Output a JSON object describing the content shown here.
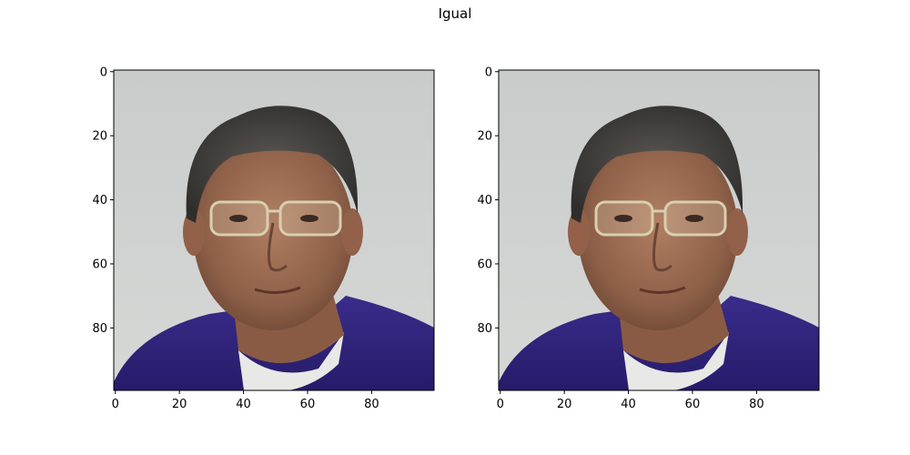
{
  "figure": {
    "title": "Igual"
  },
  "panels": [
    {
      "id": "left",
      "image_description": "portrait photo",
      "x_ticks": [
        0,
        20,
        40,
        60,
        80
      ],
      "y_ticks": [
        0,
        20,
        40,
        60,
        80
      ],
      "x_range": [
        0,
        100
      ],
      "y_range": [
        0,
        100
      ]
    },
    {
      "id": "right",
      "image_description": "portrait photo",
      "x_ticks": [
        0,
        20,
        40,
        60,
        80
      ],
      "y_ticks": [
        0,
        20,
        40,
        60,
        80
      ],
      "x_range": [
        0,
        100
      ],
      "y_range": [
        0,
        100
      ]
    }
  ]
}
